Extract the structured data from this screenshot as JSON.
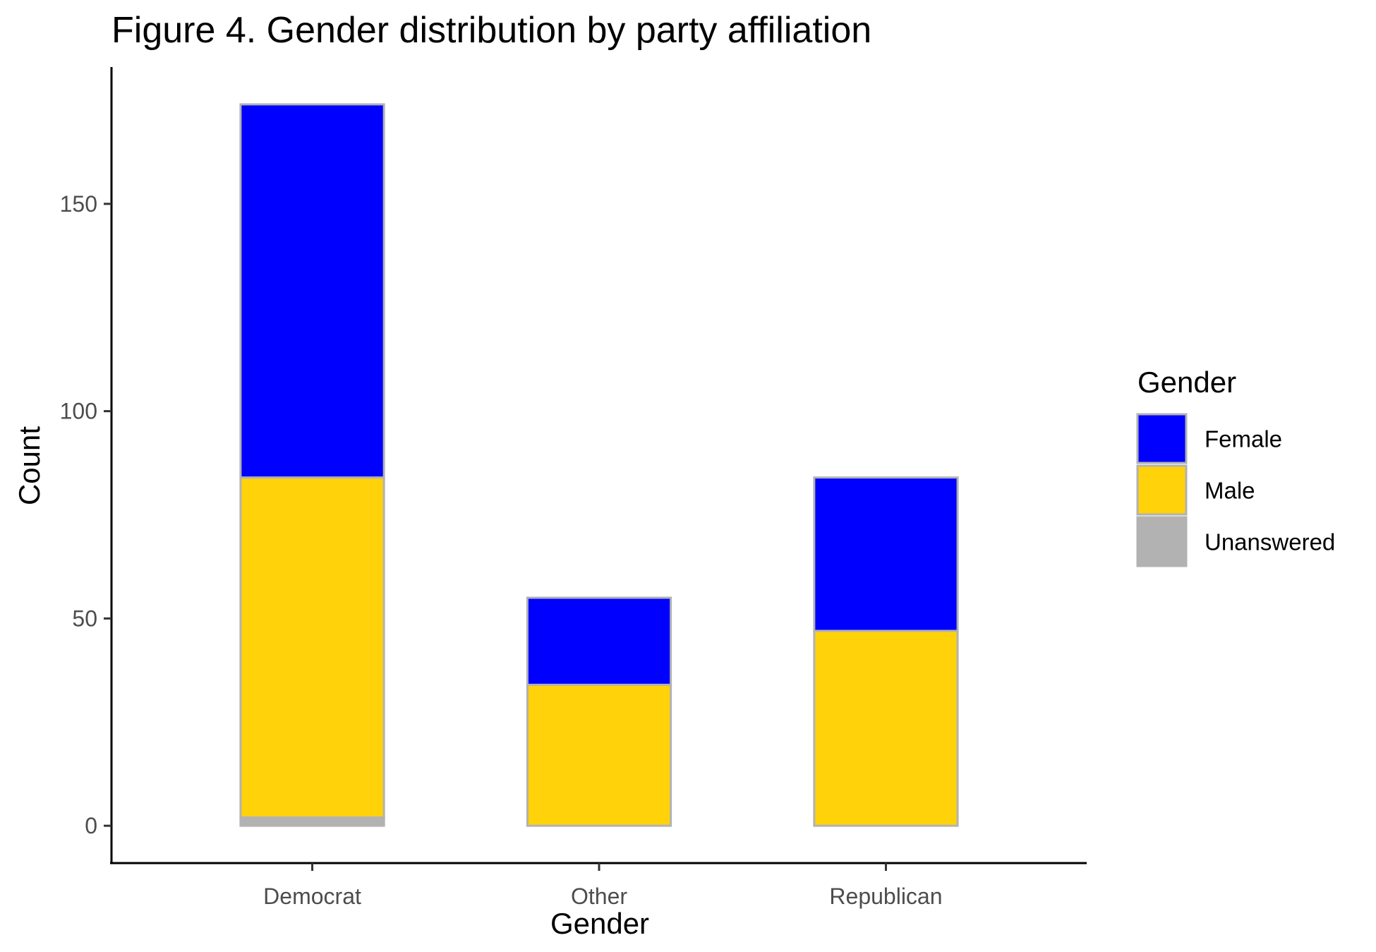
{
  "chart_data": {
    "type": "bar",
    "stacked": true,
    "title": "Figure 4. Gender distribution by party affiliation",
    "xlabel": "Gender",
    "ylabel": "Count",
    "categories": [
      "Democrat",
      "Other",
      "Republican"
    ],
    "series": [
      {
        "name": "Unanswered",
        "values": [
          2,
          0,
          0
        ],
        "color": "#b2b2b2"
      },
      {
        "name": "Male",
        "values": [
          82,
          34,
          47
        ],
        "color": "#ffd20a"
      },
      {
        "name": "Female",
        "values": [
          90,
          21,
          37
        ],
        "color": "#0000ff"
      }
    ],
    "legend_order": [
      "Female",
      "Male",
      "Unanswered"
    ],
    "legend_title": "Gender",
    "legend_position": "right",
    "yticks": [
      0,
      50,
      100,
      150
    ],
    "ylim": [
      -9,
      183
    ],
    "grid": false,
    "bar_border_color": "#b2b2b2"
  }
}
